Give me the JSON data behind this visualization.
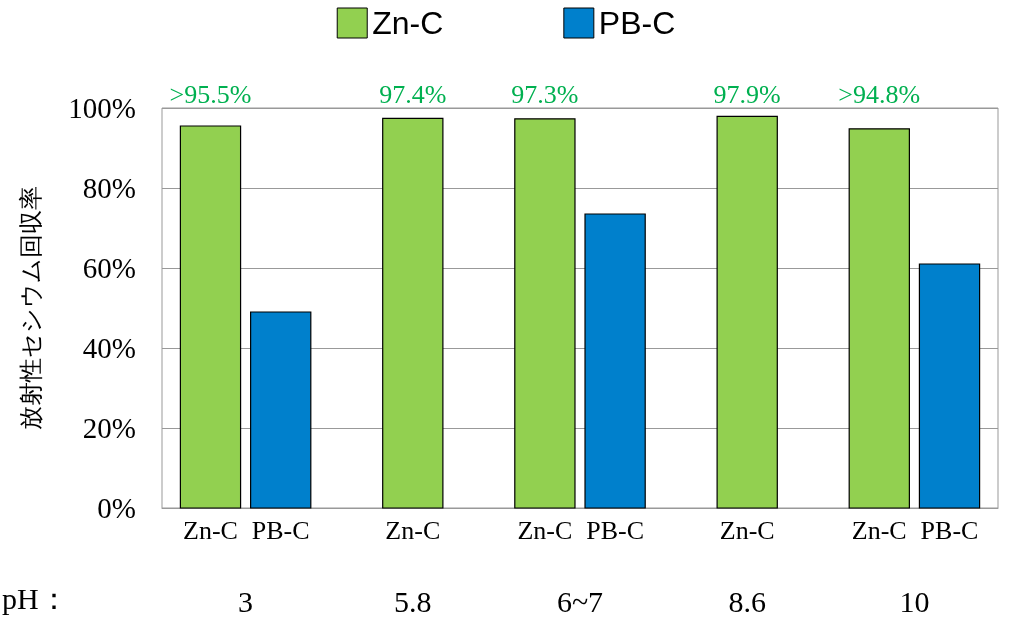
{
  "chart_data": {
    "type": "bar",
    "ylabel": "放射性セシウム回収率",
    "xlabel": "pH：",
    "categories": [
      "3",
      "5.8",
      "6~7",
      "8.6",
      "10"
    ],
    "series": [
      {
        "name": "Zn-C",
        "color": "#92d050",
        "values": [
          95.5,
          97.4,
          97.3,
          97.9,
          94.8
        ],
        "value_labels": [
          ">95.5%",
          "97.4%",
          "97.3%",
          "97.9%",
          ">94.8%"
        ]
      },
      {
        "name": "PB-C",
        "color": "#0080cc",
        "values": [
          49,
          null,
          73.5,
          null,
          61
        ]
      }
    ],
    "ylim": [
      0,
      100
    ],
    "yticks": [
      {
        "value": 0,
        "label": "0%"
      },
      {
        "value": 20,
        "label": "20%"
      },
      {
        "value": 40,
        "label": "40%"
      },
      {
        "value": 60,
        "label": "60%"
      },
      {
        "value": 80,
        "label": "80%"
      },
      {
        "value": 100,
        "label": "100%"
      }
    ],
    "grid": "y",
    "legend": "top"
  }
}
